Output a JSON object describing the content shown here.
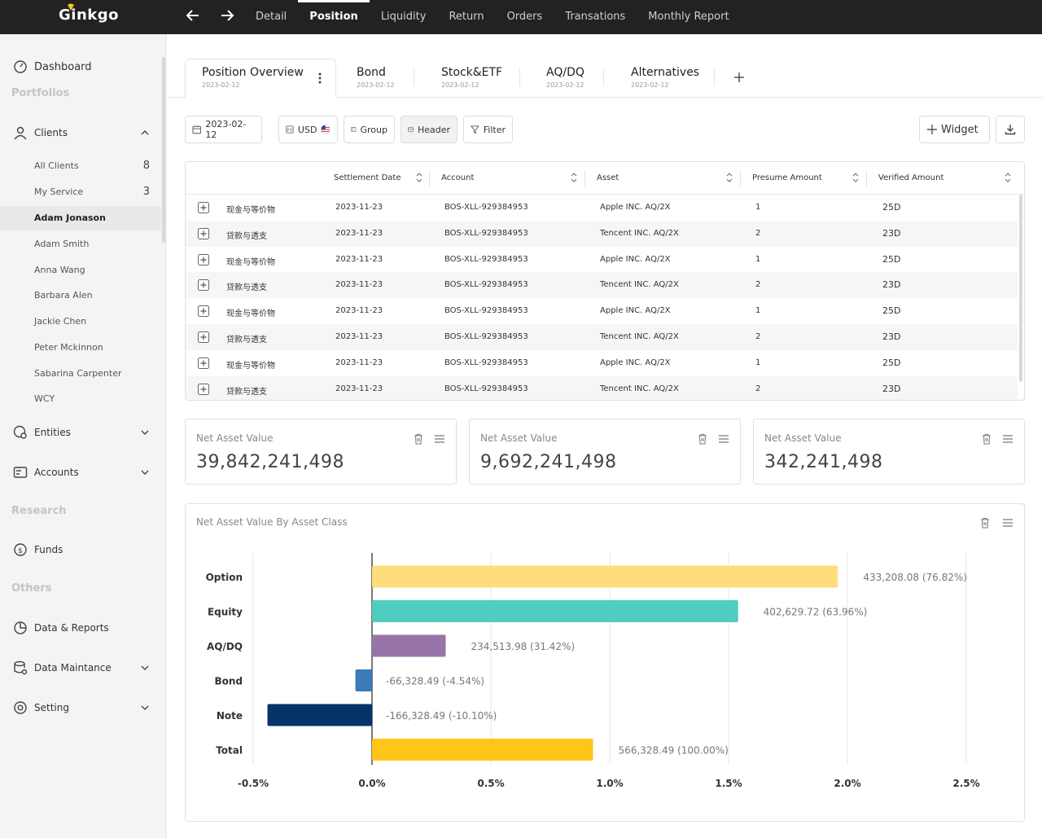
{
  "app": {
    "logo": "Ginkgo"
  },
  "topnav": [
    "Detail",
    "Position",
    "Liquidity",
    "Return",
    "Orders",
    "Transations",
    "Monthly Report"
  ],
  "sidebar": {
    "dashboard": "Dashboard",
    "sections": {
      "portfolios": "Portfolios",
      "research": "Research",
      "others": "Others"
    },
    "clients": "Clients",
    "client_items": [
      {
        "label": "All Clients",
        "count": "8"
      },
      {
        "label": "My Service",
        "count": "3"
      },
      {
        "label": "Adam Jonason",
        "count": ""
      },
      {
        "label": "Adam Smith",
        "count": ""
      },
      {
        "label": "Anna Wang",
        "count": ""
      },
      {
        "label": "Barbara Alen",
        "count": ""
      },
      {
        "label": "Jackie Chen",
        "count": ""
      },
      {
        "label": "Peter Mckinnon",
        "count": ""
      },
      {
        "label": "Sabarina Carpenter",
        "count": ""
      },
      {
        "label": "WCY",
        "count": ""
      }
    ],
    "entities": "Entities",
    "accounts": "Accounts",
    "funds": "Funds",
    "data_reports": "Data & Reports",
    "data_maintance": "Data Maintance",
    "setting": "Setting"
  },
  "tabs": [
    {
      "title": "Position Overview",
      "date": "2023-02-12"
    },
    {
      "title": "Bond",
      "date": "2023-02-12"
    },
    {
      "title": "Stock&ETF",
      "date": "2023-02-12"
    },
    {
      "title": "AQ/DQ",
      "date": "2023-02-12"
    },
    {
      "title": "Alternatives",
      "date": "2023-02-12"
    }
  ],
  "toolbar": {
    "date": "2023-02-12",
    "currency": "USD",
    "group": "Group",
    "header": "Header",
    "filter": "Filter",
    "widget": "Widget"
  },
  "table": {
    "headers": [
      "Settlement Date",
      "Account",
      "Asset",
      "Presume Amount",
      "Verified Amount"
    ],
    "rows": [
      [
        "现金与等价物",
        "2023-11-23",
        "BOS-XLL-929384953",
        "Apple INC. AQ/2X",
        "1",
        "25D"
      ],
      [
        "贷款与透支",
        "2023-11-23",
        "BOS-XLL-929384953",
        "Tencent INC. AQ/2X",
        "2",
        "23D"
      ],
      [
        "现金与等价物",
        "2023-11-23",
        "BOS-XLL-929384953",
        "Apple INC. AQ/2X",
        "1",
        "25D"
      ],
      [
        "贷款与透支",
        "2023-11-23",
        "BOS-XLL-929384953",
        "Tencent INC. AQ/2X",
        "2",
        "23D"
      ],
      [
        "现金与等价物",
        "2023-11-23",
        "BOS-XLL-929384953",
        "Apple INC. AQ/2X",
        "1",
        "25D"
      ],
      [
        "贷款与透支",
        "2023-11-23",
        "BOS-XLL-929384953",
        "Tencent INC. AQ/2X",
        "2",
        "23D"
      ],
      [
        "现金与等价物",
        "2023-11-23",
        "BOS-XLL-929384953",
        "Apple INC. AQ/2X",
        "1",
        "25D"
      ],
      [
        "贷款与透支",
        "2023-11-23",
        "BOS-XLL-929384953",
        "Tencent INC. AQ/2X",
        "2",
        "23D"
      ]
    ]
  },
  "nav_cards": [
    {
      "title": "Net Asset Value",
      "value": "39,842,241,498"
    },
    {
      "title": "Net Asset Value",
      "value": "9,692,241,498"
    },
    {
      "title": "Net Asset Value",
      "value": "342,241,498"
    }
  ],
  "chart_title": "Net Asset Value By Asset Class",
  "chart_data": {
    "type": "bar",
    "orientation": "horizontal",
    "title": "Net Asset Value By Asset Class",
    "categories": [
      "Option",
      "Equity",
      "AQ/DQ",
      "Bond",
      "Note",
      "Total"
    ],
    "values": [
      1.96,
      1.54,
      0.31,
      -0.07,
      -0.44,
      0.93
    ],
    "data_labels": [
      "433,208.08 (76.82%)",
      "402,629.72 (63.96%)",
      "234,513.98 (31.42%)",
      "-66,328.49 (-4.54%)",
      "-166,328.49 (-10.10%)",
      "566,328.49 (100.00%)"
    ],
    "colors": [
      "#FFDD7D",
      "#4ECDC0",
      "#9775A8",
      "#3C7AB8",
      "#06336A",
      "#FFC619"
    ],
    "xlim": [
      -0.5,
      2.5
    ],
    "x_ticks": [
      -0.5,
      0.0,
      0.5,
      1.0,
      1.5,
      2.0,
      2.5
    ],
    "x_tick_labels": [
      "-0.5%",
      "0.0%",
      "0.5%",
      "1.0%",
      "1.5%",
      "2.0%",
      "2.5%"
    ],
    "grid": true
  }
}
